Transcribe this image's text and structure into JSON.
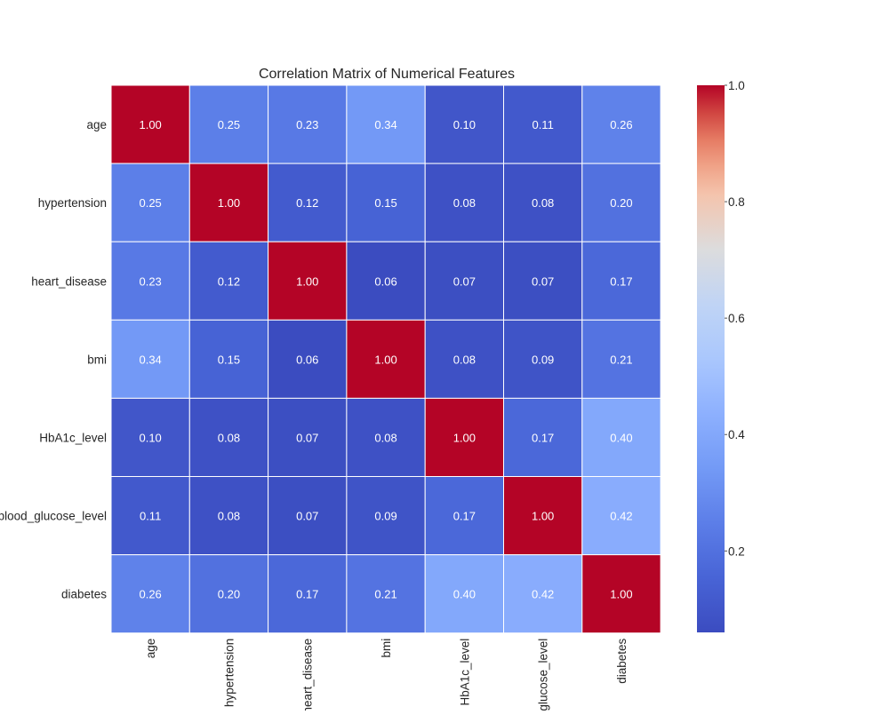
{
  "chart_data": {
    "type": "heatmap",
    "title": "Correlation Matrix of Numerical Features",
    "rows": [
      "age",
      "hypertension",
      "heart_disease",
      "bmi",
      "HbA1c_level",
      "blood_glucose_level",
      "diabetes"
    ],
    "columns": [
      "age",
      "hypertension",
      "heart_disease",
      "bmi",
      "HbA1c_level",
      "blood_glucose_level",
      "diabetes"
    ],
    "values": [
      [
        1.0,
        0.25,
        0.23,
        0.34,
        0.1,
        0.11,
        0.26
      ],
      [
        0.25,
        1.0,
        0.12,
        0.15,
        0.08,
        0.08,
        0.2
      ],
      [
        0.23,
        0.12,
        1.0,
        0.06,
        0.07,
        0.07,
        0.17
      ],
      [
        0.34,
        0.15,
        0.06,
        1.0,
        0.08,
        0.09,
        0.21
      ],
      [
        0.1,
        0.08,
        0.07,
        0.08,
        1.0,
        0.17,
        0.4
      ],
      [
        0.11,
        0.08,
        0.07,
        0.09,
        0.17,
        1.0,
        0.42
      ],
      [
        0.26,
        0.2,
        0.17,
        0.21,
        0.4,
        0.42,
        1.0
      ]
    ],
    "value_format": "0.00",
    "colormap": "coolwarm",
    "colorbar": {
      "range": [
        0.06,
        1.0
      ],
      "ticks": [
        0.2,
        0.4,
        0.6,
        0.8,
        1.0
      ],
      "tick_labels": [
        "0.2",
        "0.4",
        "0.6",
        "0.8",
        "1.0"
      ]
    },
    "cell_border_color": "#ffffff",
    "annotations_color": "#ffffff"
  }
}
